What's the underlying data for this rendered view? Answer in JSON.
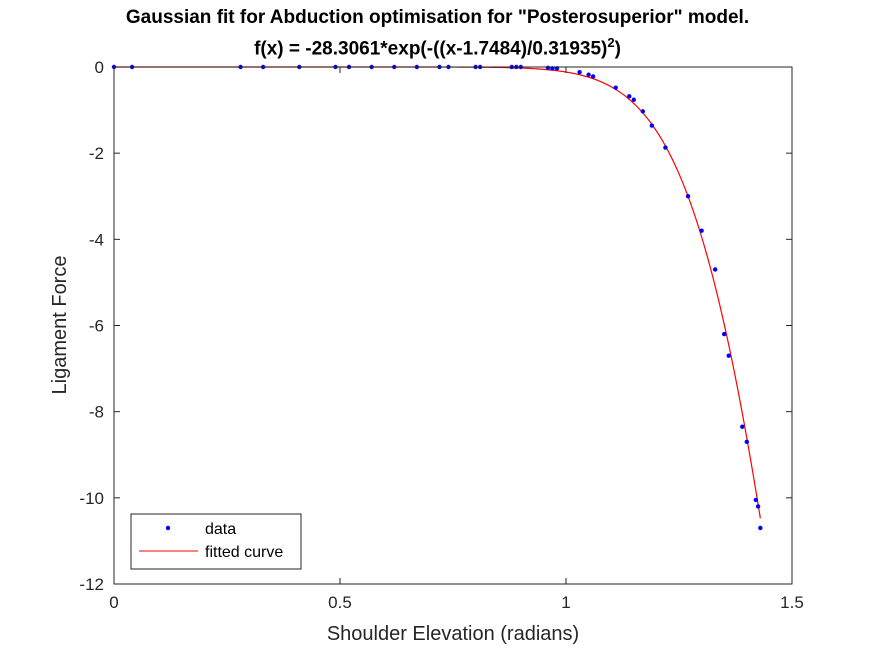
{
  "chart_data": {
    "type": "scatter",
    "title_line1": "Gaussian fit for Abduction optimisation for \"Posterosuperior\" model.",
    "title_line2_prefix": "f(x) = -28.3061*exp(-((x-1.7484)/0.31935)",
    "title_line2_sup": "2",
    "title_line2_suffix": ")",
    "xlabel": "Shoulder Elevation (radians)",
    "ylabel": "Ligament Force",
    "xlim": [
      0,
      1.5
    ],
    "ylim": [
      -12,
      0
    ],
    "xticks": [
      0,
      0.5,
      1,
      1.5
    ],
    "xtick_labels": [
      "0",
      "0.5",
      "1",
      "1.5"
    ],
    "yticks": [
      0,
      -2,
      -4,
      -6,
      -8,
      -10,
      -12
    ],
    "ytick_labels": [
      "0",
      "-2",
      "-4",
      "-6",
      "-8",
      "-10",
      "-12"
    ],
    "grid": false,
    "legend_position": "bottom-left",
    "fit": {
      "a": -28.3061,
      "b": 1.7484,
      "c": 0.31935,
      "x_range": [
        0,
        1.43
      ]
    },
    "series": [
      {
        "name": "data",
        "kind": "points",
        "color": "#0000ff",
        "x": [
          0.0,
          0.04,
          0.28,
          0.33,
          0.41,
          0.49,
          0.52,
          0.57,
          0.62,
          0.67,
          0.72,
          0.74,
          0.8,
          0.81,
          0.88,
          0.89,
          0.9,
          0.96,
          0.97,
          0.98,
          1.03,
          1.05,
          1.06,
          1.11,
          1.14,
          1.15,
          1.17,
          1.19,
          1.22,
          1.27,
          1.3,
          1.33,
          1.35,
          1.36,
          1.39,
          1.4,
          1.42,
          1.425,
          1.43
        ],
        "y": [
          0.0,
          0.0,
          0.0,
          0.0,
          0.0,
          0.0,
          0.0,
          0.0,
          0.0,
          0.0,
          0.0,
          0.0,
          0.0,
          0.0,
          0.0,
          0.0,
          0.0,
          -0.02,
          -0.03,
          -0.03,
          -0.12,
          -0.18,
          -0.22,
          -0.48,
          -0.68,
          -0.76,
          -1.03,
          -1.36,
          -1.87,
          -3.0,
          -3.8,
          -4.7,
          -6.2,
          -6.7,
          -8.35,
          -8.7,
          -10.05,
          -10.2,
          -10.7
        ]
      },
      {
        "name": "fitted curve",
        "kind": "line",
        "color": "#ff0000"
      }
    ]
  }
}
